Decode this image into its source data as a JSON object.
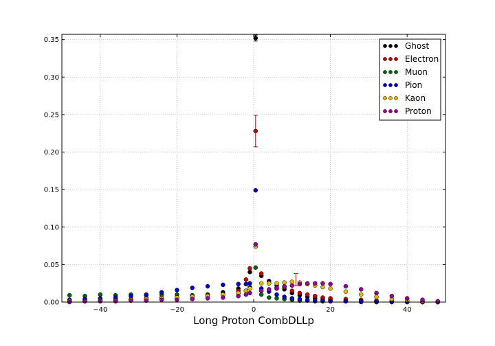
{
  "chart_data": {
    "type": "scatter",
    "xlabel": "Long Proton CombDLLp",
    "ylabel": "",
    "title": "",
    "xlim": [
      -50,
      50
    ],
    "ylim": [
      0,
      0.357
    ],
    "xticks": [
      -40,
      -20,
      0,
      20,
      40
    ],
    "yticks": [
      0.0,
      0.05,
      0.1,
      0.15,
      0.2,
      0.25,
      0.3,
      0.35
    ],
    "ytick_labels": [
      "0.00",
      "0.05",
      "0.10",
      "0.15",
      "0.20",
      "0.25",
      "0.30",
      "0.35"
    ],
    "grid": true,
    "legend_position": "top-right",
    "series": [
      {
        "name": "Ghost",
        "color": "#000000",
        "x": [
          -48,
          -44,
          -40,
          -36,
          -32,
          -28,
          -24,
          -20,
          -16,
          -12,
          -8,
          -4,
          -2,
          -1,
          0.5,
          2,
          4,
          6,
          8,
          10,
          12,
          14,
          16,
          18,
          20,
          24,
          28,
          32,
          36,
          40,
          44,
          48
        ],
        "y": [
          0.001,
          0.001,
          0.002,
          0.002,
          0.003,
          0.004,
          0.005,
          0.006,
          0.008,
          0.01,
          0.013,
          0.018,
          0.024,
          0.04,
          0.352,
          0.035,
          0.028,
          0.022,
          0.017,
          0.012,
          0.009,
          0.007,
          0.005,
          0.004,
          0.003,
          0.002,
          0.002,
          0.001,
          0.001,
          0.001,
          0.0,
          0.0
        ]
      },
      {
        "name": "Electron",
        "color": "#cc0000",
        "x": [
          -48,
          -44,
          -40,
          -36,
          -32,
          -28,
          -24,
          -20,
          -16,
          -12,
          -8,
          -4,
          -2,
          -1,
          0.5,
          2,
          4,
          6,
          8,
          10,
          12,
          14,
          16,
          18,
          20,
          24,
          28,
          32,
          36,
          40,
          44,
          48
        ],
        "y": [
          0.002,
          0.003,
          0.003,
          0.004,
          0.004,
          0.005,
          0.006,
          0.006,
          0.007,
          0.008,
          0.01,
          0.015,
          0.03,
          0.045,
          0.228,
          0.038,
          0.025,
          0.018,
          0.02,
          0.015,
          0.012,
          0.01,
          0.008,
          0.006,
          0.005,
          0.004,
          0.003,
          0.002,
          0.001,
          0.001,
          0.0,
          0.0
        ]
      },
      {
        "name": "Muon",
        "color": "#006600",
        "x": [
          -48,
          -44,
          -40,
          -36,
          -32,
          -28,
          -24,
          -20,
          -16,
          -12,
          -8,
          -4,
          -2,
          -1,
          0.5,
          2,
          4,
          6,
          8,
          10,
          12,
          14,
          16,
          18,
          20,
          24,
          28,
          32,
          36,
          40,
          44,
          48
        ],
        "y": [
          0.009,
          0.008,
          0.01,
          0.009,
          0.01,
          0.009,
          0.01,
          0.01,
          0.009,
          0.009,
          0.01,
          0.012,
          0.015,
          0.02,
          0.046,
          0.01,
          0.006,
          0.005,
          0.004,
          0.003,
          0.002,
          0.002,
          0.001,
          0.001,
          0.001,
          0.001,
          0.0,
          0.0,
          0.0,
          0.0,
          0.0,
          0.0
        ]
      },
      {
        "name": "Pion",
        "color": "#0000cc",
        "x": [
          -48,
          -44,
          -40,
          -36,
          -32,
          -28,
          -24,
          -20,
          -16,
          -12,
          -8,
          -4,
          -2,
          -1,
          0.5,
          2,
          4,
          6,
          8,
          10,
          12,
          14,
          16,
          18,
          20,
          24,
          28,
          32,
          36,
          40,
          44,
          48
        ],
        "y": [
          0.003,
          0.004,
          0.005,
          0.006,
          0.008,
          0.01,
          0.013,
          0.016,
          0.019,
          0.021,
          0.023,
          0.024,
          0.024,
          0.025,
          0.149,
          0.018,
          0.014,
          0.01,
          0.007,
          0.005,
          0.004,
          0.003,
          0.002,
          0.002,
          0.001,
          0.001,
          0.001,
          0.0,
          0.0,
          0.0,
          0.0,
          0.0
        ]
      },
      {
        "name": "Kaon",
        "color": "#ddbb00",
        "x": [
          -48,
          -44,
          -40,
          -36,
          -32,
          -28,
          -24,
          -20,
          -16,
          -12,
          -8,
          -4,
          -2,
          -1,
          0.5,
          2,
          4,
          6,
          8,
          10,
          12,
          14,
          16,
          18,
          20,
          24,
          28,
          32,
          36,
          40,
          44,
          48
        ],
        "y": [
          0.001,
          0.001,
          0.002,
          0.002,
          0.003,
          0.004,
          0.005,
          0.006,
          0.007,
          0.008,
          0.01,
          0.012,
          0.015,
          0.018,
          0.074,
          0.025,
          0.025,
          0.025,
          0.026,
          0.027,
          0.026,
          0.024,
          0.022,
          0.02,
          0.018,
          0.014,
          0.01,
          0.007,
          0.004,
          0.002,
          0.001,
          0.001
        ]
      },
      {
        "name": "Proton",
        "color": "#990099",
        "x": [
          -48,
          -44,
          -40,
          -36,
          -32,
          -28,
          -24,
          -20,
          -16,
          -12,
          -8,
          -4,
          -2,
          -1,
          0.5,
          2,
          4,
          6,
          8,
          10,
          12,
          14,
          16,
          18,
          20,
          24,
          28,
          32,
          36,
          40,
          44,
          48
        ],
        "y": [
          0.0,
          0.001,
          0.001,
          0.001,
          0.002,
          0.002,
          0.003,
          0.003,
          0.004,
          0.005,
          0.006,
          0.008,
          0.01,
          0.012,
          0.077,
          0.015,
          0.017,
          0.019,
          0.021,
          0.022,
          0.024,
          0.025,
          0.025,
          0.025,
          0.024,
          0.021,
          0.017,
          0.012,
          0.008,
          0.005,
          0.003,
          0.001
        ]
      }
    ],
    "error_bars": [
      {
        "series": "Ghost",
        "x": 0.5,
        "y": 0.352,
        "err": 0.004
      },
      {
        "series": "Electron",
        "x": 0.5,
        "y": 0.228,
        "err": 0.021
      },
      {
        "series": "Electron",
        "x": 11,
        "y": 0.03,
        "err": 0.008
      }
    ]
  }
}
